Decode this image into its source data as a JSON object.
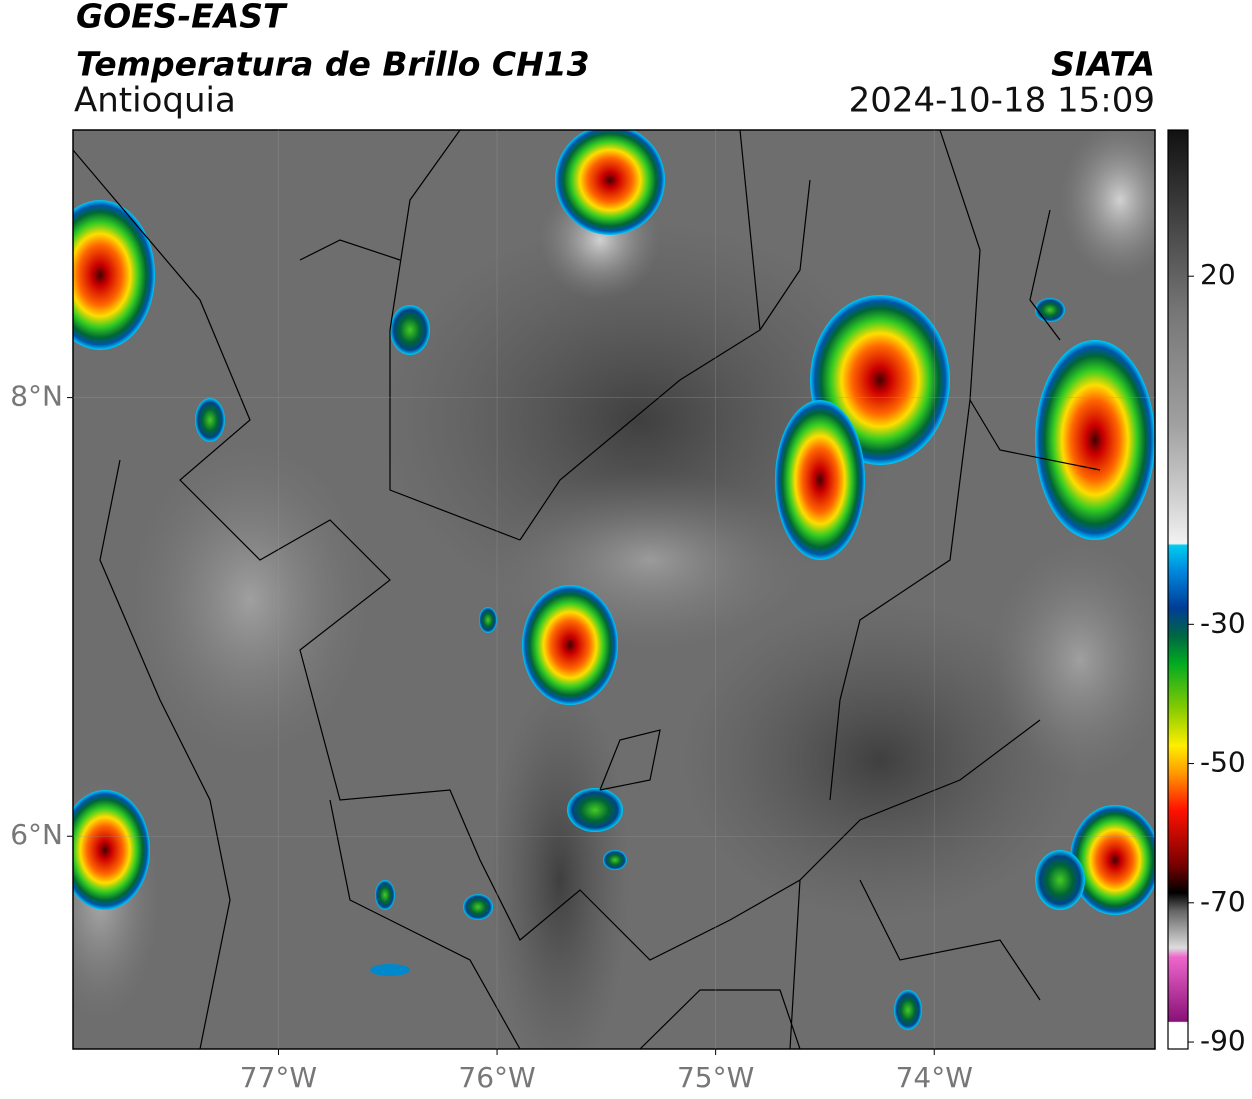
{
  "chart_data": {
    "type": "map",
    "title": "GOES-EAST",
    "subtitle": "Temperatura de Brillo CH13",
    "region": "Antioquia",
    "source": "SIATA",
    "timestamp": "2024-10-18 15:09",
    "xlim": [
      -77.94,
      -72.99
    ],
    "ylim": [
      5.03,
      9.22
    ],
    "xticks": [
      {
        "value": -77,
        "label": "77°W"
      },
      {
        "value": -76,
        "label": "76°W"
      },
      {
        "value": -75,
        "label": "75°W"
      },
      {
        "value": -74,
        "label": "74°W"
      }
    ],
    "yticks": [
      {
        "value": 8,
        "label": "8°N"
      },
      {
        "value": 6,
        "label": "6°N"
      }
    ],
    "grid": true,
    "colorbar": {
      "lim": [
        -91,
        41
      ],
      "ticks": [
        20,
        -30,
        -50,
        -70,
        -90
      ]
    }
  }
}
